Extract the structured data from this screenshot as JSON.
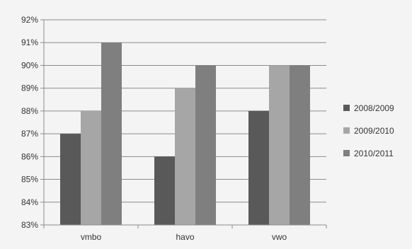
{
  "chart_data": {
    "type": "bar",
    "title": "",
    "xlabel": "",
    "ylabel": "",
    "categories": [
      "vmbo",
      "havo",
      "vwo"
    ],
    "series": [
      {
        "name": "2008/2009",
        "values": [
          87,
          86,
          88
        ],
        "color": "#595959"
      },
      {
        "name": "2009/2010",
        "values": [
          88,
          89,
          90
        ],
        "color": "#a6a6a6"
      },
      {
        "name": "2010/2011",
        "values": [
          91,
          90,
          90
        ],
        "color": "#7f7f7f"
      }
    ],
    "ylim": [
      83,
      92
    ],
    "ytick_step": 1,
    "ytick_format": "percent",
    "grid": true,
    "legend_position": "right"
  }
}
